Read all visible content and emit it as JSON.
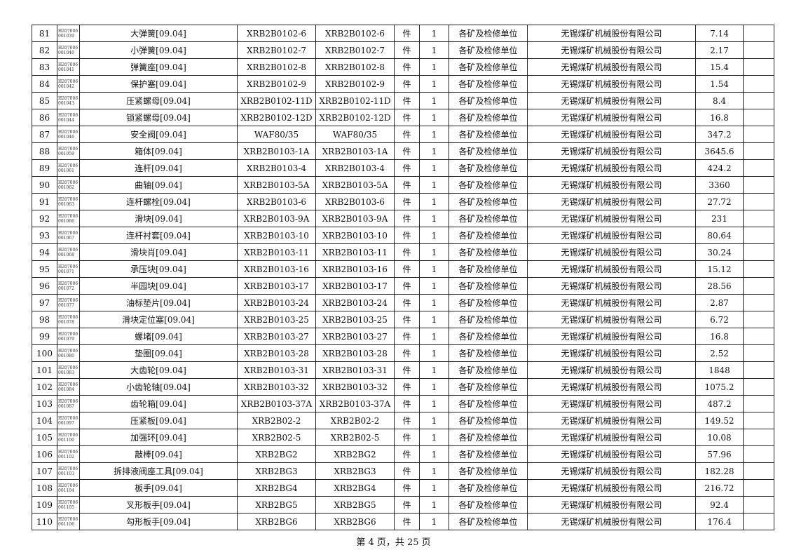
{
  "rows": [
    {
      "no": "81",
      "code": [
        "H207006",
        "001039"
      ],
      "name": "大弹簧[09.04]",
      "spec1": "XRB2B0102-6",
      "spec2": "XRB2B0102-6",
      "unit": "件",
      "qty": "1",
      "user": "各矿及检修单位",
      "maker": "无锡煤矿机械股份有限公司",
      "price": "7.14",
      "remark": ""
    },
    {
      "no": "82",
      "code": [
        "H207006",
        "001040"
      ],
      "name": "小弹簧[09.04]",
      "spec1": "XRB2B0102-7",
      "spec2": "XRB2B0102-7",
      "unit": "件",
      "qty": "1",
      "user": "各矿及检修单位",
      "maker": "无锡煤矿机械股份有限公司",
      "price": "2.17",
      "remark": ""
    },
    {
      "no": "83",
      "code": [
        "H207006",
        "001041"
      ],
      "name": "弹簧座[09.04]",
      "spec1": "XRB2B0102-8",
      "spec2": "XRB2B0102-8",
      "unit": "件",
      "qty": "1",
      "user": "各矿及检修单位",
      "maker": "无锡煤矿机械股份有限公司",
      "price": "15.4",
      "remark": ""
    },
    {
      "no": "84",
      "code": [
        "H207006",
        "001042"
      ],
      "name": "保护塞[09.04]",
      "spec1": "XRB2B0102-9",
      "spec2": "XRB2B0102-9",
      "unit": "件",
      "qty": "1",
      "user": "各矿及检修单位",
      "maker": "无锡煤矿机械股份有限公司",
      "price": "1.54",
      "remark": ""
    },
    {
      "no": "85",
      "code": [
        "H207006",
        "001043"
      ],
      "name": "压紧螺母[09.04]",
      "spec1": "XRB2B0102-11D",
      "spec2": "XRB2B0102-11D",
      "unit": "件",
      "qty": "1",
      "user": "各矿及检修单位",
      "maker": "无锡煤矿机械股份有限公司",
      "price": "8.4",
      "remark": ""
    },
    {
      "no": "86",
      "code": [
        "H207006",
        "001044"
      ],
      "name": "锁紧螺母[09.04]",
      "spec1": "XRB2B0102-12D",
      "spec2": "XRB2B0102-12D",
      "unit": "件",
      "qty": "1",
      "user": "各矿及检修单位",
      "maker": "无锡煤矿机械股份有限公司",
      "price": "16.8",
      "remark": ""
    },
    {
      "no": "87",
      "code": [
        "H207006",
        "001046"
      ],
      "name": "安全阀[09.04]",
      "spec1": "WAF80/35",
      "spec2": "WAF80/35",
      "unit": "件",
      "qty": "1",
      "user": "各矿及检修单位",
      "maker": "无锡煤矿机械股份有限公司",
      "price": "347.2",
      "remark": ""
    },
    {
      "no": "88",
      "code": [
        "H207006",
        "001059"
      ],
      "name": "箱体[09.04]",
      "spec1": "XRB2B0103-1A",
      "spec2": "XRB2B0103-1A",
      "unit": "件",
      "qty": "1",
      "user": "各矿及检修单位",
      "maker": "无锡煤矿机械股份有限公司",
      "price": "3645.6",
      "remark": ""
    },
    {
      "no": "89",
      "code": [
        "H207006",
        "001061"
      ],
      "name": "连杆[09.04]",
      "spec1": "XRB2B0103-4",
      "spec2": "XRB2B0103-4",
      "unit": "件",
      "qty": "1",
      "user": "各矿及检修单位",
      "maker": "无锡煤矿机械股份有限公司",
      "price": "424.2",
      "remark": ""
    },
    {
      "no": "90",
      "code": [
        "H207006",
        "001062"
      ],
      "name": "曲轴[09.04]",
      "spec1": "XRB2B0103-5A",
      "spec2": "XRB2B0103-5A",
      "unit": "件",
      "qty": "1",
      "user": "各矿及检修单位",
      "maker": "无锡煤矿机械股份有限公司",
      "price": "3360",
      "remark": ""
    },
    {
      "no": "91",
      "code": [
        "H207006",
        "001063"
      ],
      "name": "连杆螺栓[09.04]",
      "spec1": "XRB2B0103-6",
      "spec2": "XRB2B0103-6",
      "unit": "件",
      "qty": "1",
      "user": "各矿及检修单位",
      "maker": "无锡煤矿机械股份有限公司",
      "price": "27.72",
      "remark": ""
    },
    {
      "no": "92",
      "code": [
        "H207006",
        "001066"
      ],
      "name": "滑块[09.04]",
      "spec1": "XRB2B0103-9A",
      "spec2": "XRB2B0103-9A",
      "unit": "件",
      "qty": "1",
      "user": "各矿及检修单位",
      "maker": "无锡煤矿机械股份有限公司",
      "price": "231",
      "remark": ""
    },
    {
      "no": "93",
      "code": [
        "H207006",
        "001067"
      ],
      "name": "连杆衬套[09.04]",
      "spec1": "XRB2B0103-10",
      "spec2": "XRB2B0103-10",
      "unit": "件",
      "qty": "1",
      "user": "各矿及检修单位",
      "maker": "无锡煤矿机械股份有限公司",
      "price": "80.64",
      "remark": ""
    },
    {
      "no": "94",
      "code": [
        "H207006",
        "001068"
      ],
      "name": "滑块肖[09.04]",
      "spec1": "XRB2B0103-11",
      "spec2": "XRB2B0103-11",
      "unit": "件",
      "qty": "1",
      "user": "各矿及检修单位",
      "maker": "无锡煤矿机械股份有限公司",
      "price": "30.24",
      "remark": ""
    },
    {
      "no": "95",
      "code": [
        "H207006",
        "001071"
      ],
      "name": "承压块[09.04]",
      "spec1": "XRB2B0103-16",
      "spec2": "XRB2B0103-16",
      "unit": "件",
      "qty": "1",
      "user": "各矿及检修单位",
      "maker": "无锡煤矿机械股份有限公司",
      "price": "15.12",
      "remark": ""
    },
    {
      "no": "96",
      "code": [
        "H207006",
        "001072"
      ],
      "name": "半园块[09.04]",
      "spec1": "XRB2B0103-17",
      "spec2": "XRB2B0103-17",
      "unit": "件",
      "qty": "1",
      "user": "各矿及检修单位",
      "maker": "无锡煤矿机械股份有限公司",
      "price": "28.56",
      "remark": ""
    },
    {
      "no": "97",
      "code": [
        "H207006",
        "001077"
      ],
      "name": "油标垫片[09.04]",
      "spec1": "XRB2B0103-24",
      "spec2": "XRB2B0103-24",
      "unit": "件",
      "qty": "1",
      "user": "各矿及检修单位",
      "maker": "无锡煤矿机械股份有限公司",
      "price": "2.87",
      "remark": ""
    },
    {
      "no": "98",
      "code": [
        "H207006",
        "001078"
      ],
      "name": "滑块定位塞[09.04]",
      "spec1": "XRB2B0103-25",
      "spec2": "XRB2B0103-25",
      "unit": "件",
      "qty": "1",
      "user": "各矿及检修单位",
      "maker": "无锡煤矿机械股份有限公司",
      "price": "6.72",
      "remark": ""
    },
    {
      "no": "99",
      "code": [
        "H207006",
        "001079"
      ],
      "name": "螺堵[09.04]",
      "spec1": "XRB2B0103-27",
      "spec2": "XRB2B0103-27",
      "unit": "件",
      "qty": "1",
      "user": "各矿及检修单位",
      "maker": "无锡煤矿机械股份有限公司",
      "price": "16.8",
      "remark": ""
    },
    {
      "no": "100",
      "code": [
        "H207006",
        "001080"
      ],
      "name": "垫圈[09.04]",
      "spec1": "XRB2B0103-28",
      "spec2": "XRB2B0103-28",
      "unit": "件",
      "qty": "1",
      "user": "各矿及检修单位",
      "maker": "无锡煤矿机械股份有限公司",
      "price": "2.52",
      "remark": ""
    },
    {
      "no": "101",
      "code": [
        "H207006",
        "001083"
      ],
      "name": "大齿轮[09.04]",
      "spec1": "XRB2B0103-31",
      "spec2": "XRB2B0103-31",
      "unit": "件",
      "qty": "1",
      "user": "各矿及检修单位",
      "maker": "无锡煤矿机械股份有限公司",
      "price": "1848",
      "remark": ""
    },
    {
      "no": "102",
      "code": [
        "H207006",
        "001084"
      ],
      "name": "小齿轮轴[09.04]",
      "spec1": "XRB2B0103-32",
      "spec2": "XRB2B0103-32",
      "unit": "件",
      "qty": "1",
      "user": "各矿及检修单位",
      "maker": "无锡煤矿机械股份有限公司",
      "price": "1075.2",
      "remark": ""
    },
    {
      "no": "103",
      "code": [
        "H207006",
        "001087"
      ],
      "name": "齿轮箱[09.04]",
      "spec1": "XRB2B0103-37A",
      "spec2": "XRB2B0103-37A",
      "unit": "件",
      "qty": "1",
      "user": "各矿及检修单位",
      "maker": "无锡煤矿机械股份有限公司",
      "price": "487.2",
      "remark": ""
    },
    {
      "no": "104",
      "code": [
        "H207006",
        "001097"
      ],
      "name": "压紧板[09.04]",
      "spec1": "XRB2B02-2",
      "spec2": "XRB2B02-2",
      "unit": "件",
      "qty": "1",
      "user": "各矿及检修单位",
      "maker": "无锡煤矿机械股份有限公司",
      "price": "149.52",
      "remark": ""
    },
    {
      "no": "105",
      "code": [
        "H207006",
        "001100"
      ],
      "name": "加强环[09.04]",
      "spec1": "XRB2B02-5",
      "spec2": "XRB2B02-5",
      "unit": "件",
      "qty": "1",
      "user": "各矿及检修单位",
      "maker": "无锡煤矿机械股份有限公司",
      "price": "10.08",
      "remark": ""
    },
    {
      "no": "106",
      "code": [
        "H207006",
        "001102"
      ],
      "name": "敲棒[09.04]",
      "spec1": "XRB2BG2",
      "spec2": "XRB2BG2",
      "unit": "件",
      "qty": "1",
      "user": "各矿及检修单位",
      "maker": "无锡煤矿机械股份有限公司",
      "price": "57.96",
      "remark": ""
    },
    {
      "no": "107",
      "code": [
        "H207006",
        "001103"
      ],
      "name": "拆排液阀座工具[09.04]",
      "spec1": "XRB2BG3",
      "spec2": "XRB2BG3",
      "unit": "件",
      "qty": "1",
      "user": "各矿及检修单位",
      "maker": "无锡煤矿机械股份有限公司",
      "price": "182.28",
      "remark": ""
    },
    {
      "no": "108",
      "code": [
        "H207006",
        "001104"
      ],
      "name": "板手[09.04]",
      "spec1": "XRB2BG4",
      "spec2": "XRB2BG4",
      "unit": "件",
      "qty": "1",
      "user": "各矿及检修单位",
      "maker": "无锡煤矿机械股份有限公司",
      "price": "216.72",
      "remark": ""
    },
    {
      "no": "109",
      "code": [
        "H207006",
        "001105"
      ],
      "name": "叉形板手[09.04]",
      "spec1": "XRB2BG5",
      "spec2": "XRB2BG5",
      "unit": "件",
      "qty": "1",
      "user": "各矿及检修单位",
      "maker": "无锡煤矿机械股份有限公司",
      "price": "92.4",
      "remark": ""
    },
    {
      "no": "110",
      "code": [
        "H207006",
        "001106"
      ],
      "name": "勾形板手[09.04]",
      "spec1": "XRB2BG6",
      "spec2": "XRB2BG6",
      "unit": "件",
      "qty": "1",
      "user": "各矿及检修单位",
      "maker": "无锡煤矿机械股份有限公司",
      "price": "176.4",
      "remark": ""
    }
  ],
  "footer": {
    "page_text": "第 4 页，共 25 页"
  }
}
